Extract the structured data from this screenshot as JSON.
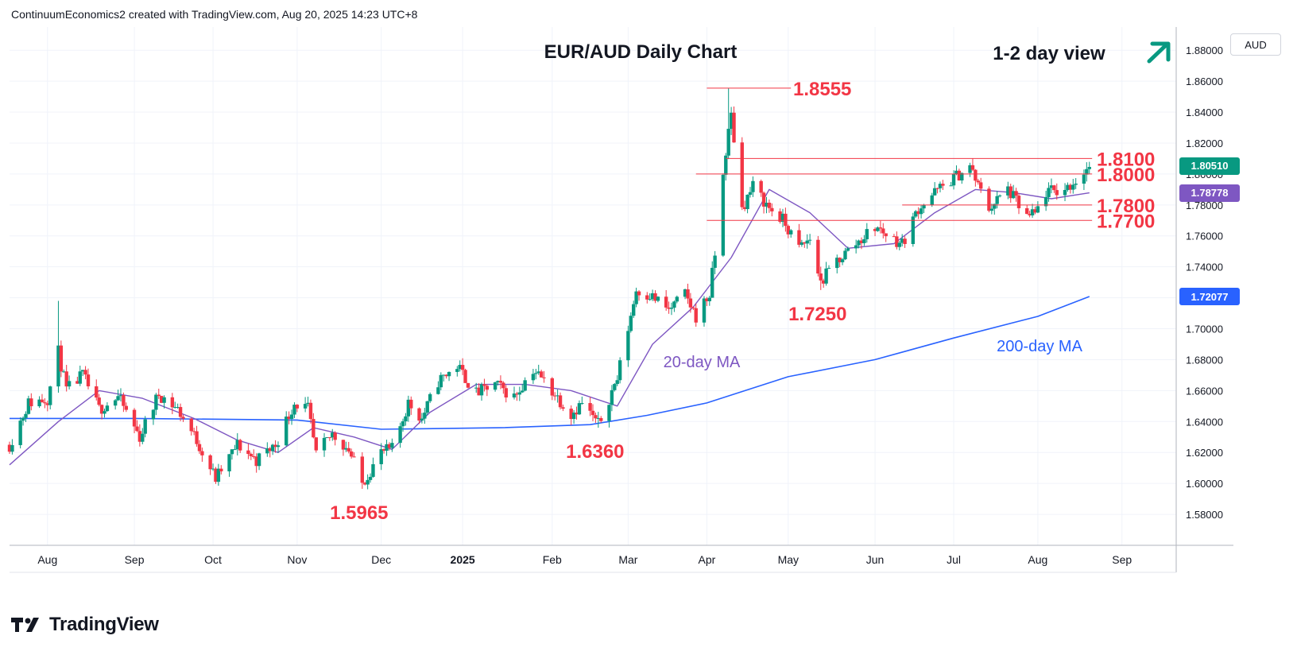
{
  "header": {
    "created_by": "ContinuumEconomics2 created with TradingView.com, Aug 20, 2025 14:23 UTC+8"
  },
  "brand": {
    "name": "TradingView"
  },
  "currency_label": "AUD",
  "colors": {
    "bull": "#089981",
    "bear": "#f23645",
    "ma20": "#7e57c2",
    "ma200": "#2962ff",
    "annotation": "#f23645",
    "arrow": "#089981"
  },
  "chart_data": {
    "type": "candlestick",
    "title": "EUR/AUD Daily Chart",
    "view_label": "1-2 day view",
    "view_direction": "up",
    "y_axis": {
      "min": 1.56,
      "max": 1.895,
      "ticks": [
        "1.88000",
        "1.86000",
        "1.84000",
        "1.82000",
        "1.80000",
        "1.78000",
        "1.76000",
        "1.74000",
        "1.72000",
        "1.70000",
        "1.68000",
        "1.66000",
        "1.64000",
        "1.62000",
        "1.60000",
        "1.58000"
      ],
      "tick_values": [
        1.88,
        1.86,
        1.84,
        1.82,
        1.8,
        1.78,
        1.76,
        1.74,
        1.72,
        1.7,
        1.68,
        1.66,
        1.64,
        1.62,
        1.6,
        1.58
      ]
    },
    "x_axis": {
      "labels": [
        {
          "text": "Aug",
          "date": "2024-08-01",
          "bold": false
        },
        {
          "text": "Sep",
          "date": "2024-09-02",
          "bold": false
        },
        {
          "text": "Oct",
          "date": "2024-10-01",
          "bold": false
        },
        {
          "text": "Nov",
          "date": "2024-11-01",
          "bold": false
        },
        {
          "text": "Dec",
          "date": "2024-12-02",
          "bold": false
        },
        {
          "text": "2025",
          "date": "2025-01-01",
          "bold": true
        },
        {
          "text": "Feb",
          "date": "2025-02-03",
          "bold": false
        },
        {
          "text": "Mar",
          "date": "2025-03-03",
          "bold": false
        },
        {
          "text": "Apr",
          "date": "2025-04-01",
          "bold": false
        },
        {
          "text": "May",
          "date": "2025-05-01",
          "bold": false
        },
        {
          "text": "Jun",
          "date": "2025-06-02",
          "bold": false
        },
        {
          "text": "Jul",
          "date": "2025-07-01",
          "bold": false
        },
        {
          "text": "Aug",
          "date": "2025-08-01",
          "bold": false
        },
        {
          "text": "Sep",
          "date": "2025-09-01",
          "bold": false
        }
      ]
    },
    "path_anchors": [
      {
        "date": "2024-07-18",
        "price": 1.625
      },
      {
        "date": "2024-07-25",
        "price": 1.652
      },
      {
        "date": "2024-08-01",
        "price": 1.655
      },
      {
        "date": "2024-08-05",
        "price": 1.685
      },
      {
        "date": "2024-08-08",
        "price": 1.66
      },
      {
        "date": "2024-08-14",
        "price": 1.67
      },
      {
        "date": "2024-08-20",
        "price": 1.648
      },
      {
        "date": "2024-08-27",
        "price": 1.656
      },
      {
        "date": "2024-09-04",
        "price": 1.63
      },
      {
        "date": "2024-09-11",
        "price": 1.658
      },
      {
        "date": "2024-09-18",
        "price": 1.648
      },
      {
        "date": "2024-09-25",
        "price": 1.628
      },
      {
        "date": "2024-10-02",
        "price": 1.603
      },
      {
        "date": "2024-10-10",
        "price": 1.625
      },
      {
        "date": "2024-10-17",
        "price": 1.615
      },
      {
        "date": "2024-10-24",
        "price": 1.625
      },
      {
        "date": "2024-10-31",
        "price": 1.652
      },
      {
        "date": "2024-11-05",
        "price": 1.648
      },
      {
        "date": "2024-11-08",
        "price": 1.618
      },
      {
        "date": "2024-11-14",
        "price": 1.632
      },
      {
        "date": "2024-11-20",
        "price": 1.622
      },
      {
        "date": "2024-11-25",
        "price": 1.6
      },
      {
        "date": "2024-12-02",
        "price": 1.62
      },
      {
        "date": "2024-12-06",
        "price": 1.622
      },
      {
        "date": "2024-12-12",
        "price": 1.652
      },
      {
        "date": "2024-12-17",
        "price": 1.642
      },
      {
        "date": "2024-12-23",
        "price": 1.666
      },
      {
        "date": "2024-12-30",
        "price": 1.676
      },
      {
        "date": "2025-01-06",
        "price": 1.658
      },
      {
        "date": "2025-01-13",
        "price": 1.664
      },
      {
        "date": "2025-01-20",
        "price": 1.656
      },
      {
        "date": "2025-01-27",
        "price": 1.674
      },
      {
        "date": "2025-02-03",
        "price": 1.66
      },
      {
        "date": "2025-02-10",
        "price": 1.645
      },
      {
        "date": "2025-02-14",
        "price": 1.652
      },
      {
        "date": "2025-02-20",
        "price": 1.638
      },
      {
        "date": "2025-02-27",
        "price": 1.668
      },
      {
        "date": "2025-03-06",
        "price": 1.725
      },
      {
        "date": "2025-03-11",
        "price": 1.722
      },
      {
        "date": "2025-03-18",
        "price": 1.712
      },
      {
        "date": "2025-03-24",
        "price": 1.722
      },
      {
        "date": "2025-03-28",
        "price": 1.708
      },
      {
        "date": "2025-04-02",
        "price": 1.722
      },
      {
        "date": "2025-04-04",
        "price": 1.748
      },
      {
        "date": "2025-04-08",
        "price": 1.815
      },
      {
        "date": "2025-04-10",
        "price": 1.838
      },
      {
        "date": "2025-04-14",
        "price": 1.778
      },
      {
        "date": "2025-04-18",
        "price": 1.792
      },
      {
        "date": "2025-04-24",
        "price": 1.778
      },
      {
        "date": "2025-04-29",
        "price": 1.77
      },
      {
        "date": "2025-05-05",
        "price": 1.752
      },
      {
        "date": "2025-05-09",
        "price": 1.758
      },
      {
        "date": "2025-05-13",
        "price": 1.73
      },
      {
        "date": "2025-05-19",
        "price": 1.744
      },
      {
        "date": "2025-05-26",
        "price": 1.755
      },
      {
        "date": "2025-06-02",
        "price": 1.766
      },
      {
        "date": "2025-06-09",
        "price": 1.758
      },
      {
        "date": "2025-06-12",
        "price": 1.755
      },
      {
        "date": "2025-06-18",
        "price": 1.778
      },
      {
        "date": "2025-06-24",
        "price": 1.788
      },
      {
        "date": "2025-06-30",
        "price": 1.796
      },
      {
        "date": "2025-07-07",
        "price": 1.805
      },
      {
        "date": "2025-07-10",
        "price": 1.792
      },
      {
        "date": "2025-07-14",
        "price": 1.778
      },
      {
        "date": "2025-07-21",
        "price": 1.79
      },
      {
        "date": "2025-07-28",
        "price": 1.772
      },
      {
        "date": "2025-07-31",
        "price": 1.774
      },
      {
        "date": "2025-08-04",
        "price": 1.788
      },
      {
        "date": "2025-08-11",
        "price": 1.79
      },
      {
        "date": "2025-08-15",
        "price": 1.796
      },
      {
        "date": "2025-08-20",
        "price": 1.805
      }
    ],
    "wick_extremes": [
      {
        "date": "2024-08-05",
        "high": 1.718
      },
      {
        "date": "2024-11-25",
        "low": 1.5965
      },
      {
        "date": "2025-02-20",
        "low": 1.636
      },
      {
        "date": "2025-04-09",
        "high": 1.8555
      },
      {
        "date": "2025-05-13",
        "low": 1.725
      },
      {
        "date": "2025-07-08",
        "high": 1.81
      }
    ],
    "series": [
      {
        "name": "20-day MA",
        "points": [
          {
            "date": "2024-07-18",
            "price": 1.612
          },
          {
            "date": "2024-08-05",
            "price": 1.64
          },
          {
            "date": "2024-08-20",
            "price": 1.66
          },
          {
            "date": "2024-09-05",
            "price": 1.655
          },
          {
            "date": "2024-09-24",
            "price": 1.642
          },
          {
            "date": "2024-10-10",
            "price": 1.628
          },
          {
            "date": "2024-10-25",
            "price": 1.62
          },
          {
            "date": "2024-11-07",
            "price": 1.636
          },
          {
            "date": "2024-11-22",
            "price": 1.63
          },
          {
            "date": "2024-12-06",
            "price": 1.622
          },
          {
            "date": "2024-12-20",
            "price": 1.646
          },
          {
            "date": "2025-01-06",
            "price": 1.664
          },
          {
            "date": "2025-01-24",
            "price": 1.664
          },
          {
            "date": "2025-02-10",
            "price": 1.66
          },
          {
            "date": "2025-02-27",
            "price": 1.65
          },
          {
            "date": "2025-03-12",
            "price": 1.69
          },
          {
            "date": "2025-03-27",
            "price": 1.714
          },
          {
            "date": "2025-04-10",
            "price": 1.746
          },
          {
            "date": "2025-04-24",
            "price": 1.79
          },
          {
            "date": "2025-05-09",
            "price": 1.775
          },
          {
            "date": "2025-05-23",
            "price": 1.752
          },
          {
            "date": "2025-06-09",
            "price": 1.755
          },
          {
            "date": "2025-06-24",
            "price": 1.775
          },
          {
            "date": "2025-07-09",
            "price": 1.79
          },
          {
            "date": "2025-07-23",
            "price": 1.788
          },
          {
            "date": "2025-08-06",
            "price": 1.784
          },
          {
            "date": "2025-08-20",
            "price": 1.7878
          }
        ]
      },
      {
        "name": "200-day MA",
        "points": [
          {
            "date": "2024-07-18",
            "price": 1.642
          },
          {
            "date": "2024-09-02",
            "price": 1.642
          },
          {
            "date": "2024-11-01",
            "price": 1.641
          },
          {
            "date": "2024-12-02",
            "price": 1.635
          },
          {
            "date": "2025-01-15",
            "price": 1.636
          },
          {
            "date": "2025-02-17",
            "price": 1.638
          },
          {
            "date": "2025-03-10",
            "price": 1.644
          },
          {
            "date": "2025-04-01",
            "price": 1.652
          },
          {
            "date": "2025-05-01",
            "price": 1.669
          },
          {
            "date": "2025-06-02",
            "price": 1.68
          },
          {
            "date": "2025-07-01",
            "price": 1.694
          },
          {
            "date": "2025-08-01",
            "price": 1.708
          },
          {
            "date": "2025-08-20",
            "price": 1.7208
          }
        ]
      }
    ],
    "series_labels": [
      {
        "text": "20-day MA",
        "color": "#7e57c2"
      },
      {
        "text": "200-day MA",
        "color": "#2962ff"
      }
    ],
    "levels": [
      {
        "label": "1.8555",
        "price": 1.8555,
        "from": "2025-04-01",
        "to": "2025-05-02"
      },
      {
        "label": "1.8100",
        "price": 1.81,
        "from": "2025-04-08",
        "to": "2025-08-21"
      },
      {
        "label": "1.8000",
        "price": 1.8,
        "from": "2025-03-28",
        "to": "2025-08-21"
      },
      {
        "label": "1.7800",
        "price": 1.78,
        "from": "2025-06-12",
        "to": "2025-08-21"
      },
      {
        "label": "1.7700",
        "price": 1.77,
        "from": "2025-04-01",
        "to": "2025-08-21"
      }
    ],
    "annotations": [
      {
        "text": "1.5965",
        "date": "2024-11-25",
        "price": 1.5965
      },
      {
        "text": "1.6360",
        "date": "2025-02-20",
        "price": 1.636
      },
      {
        "text": "1.7250",
        "date": "2025-05-13",
        "price": 1.725
      }
    ],
    "price_tags": [
      {
        "text": "1.80510",
        "price": 1.8051,
        "color": "#089981"
      },
      {
        "text": "1.78778",
        "price": 1.78778,
        "color": "#7e57c2"
      },
      {
        "text": "1.72077",
        "price": 1.72077,
        "color": "#2962ff"
      }
    ]
  }
}
